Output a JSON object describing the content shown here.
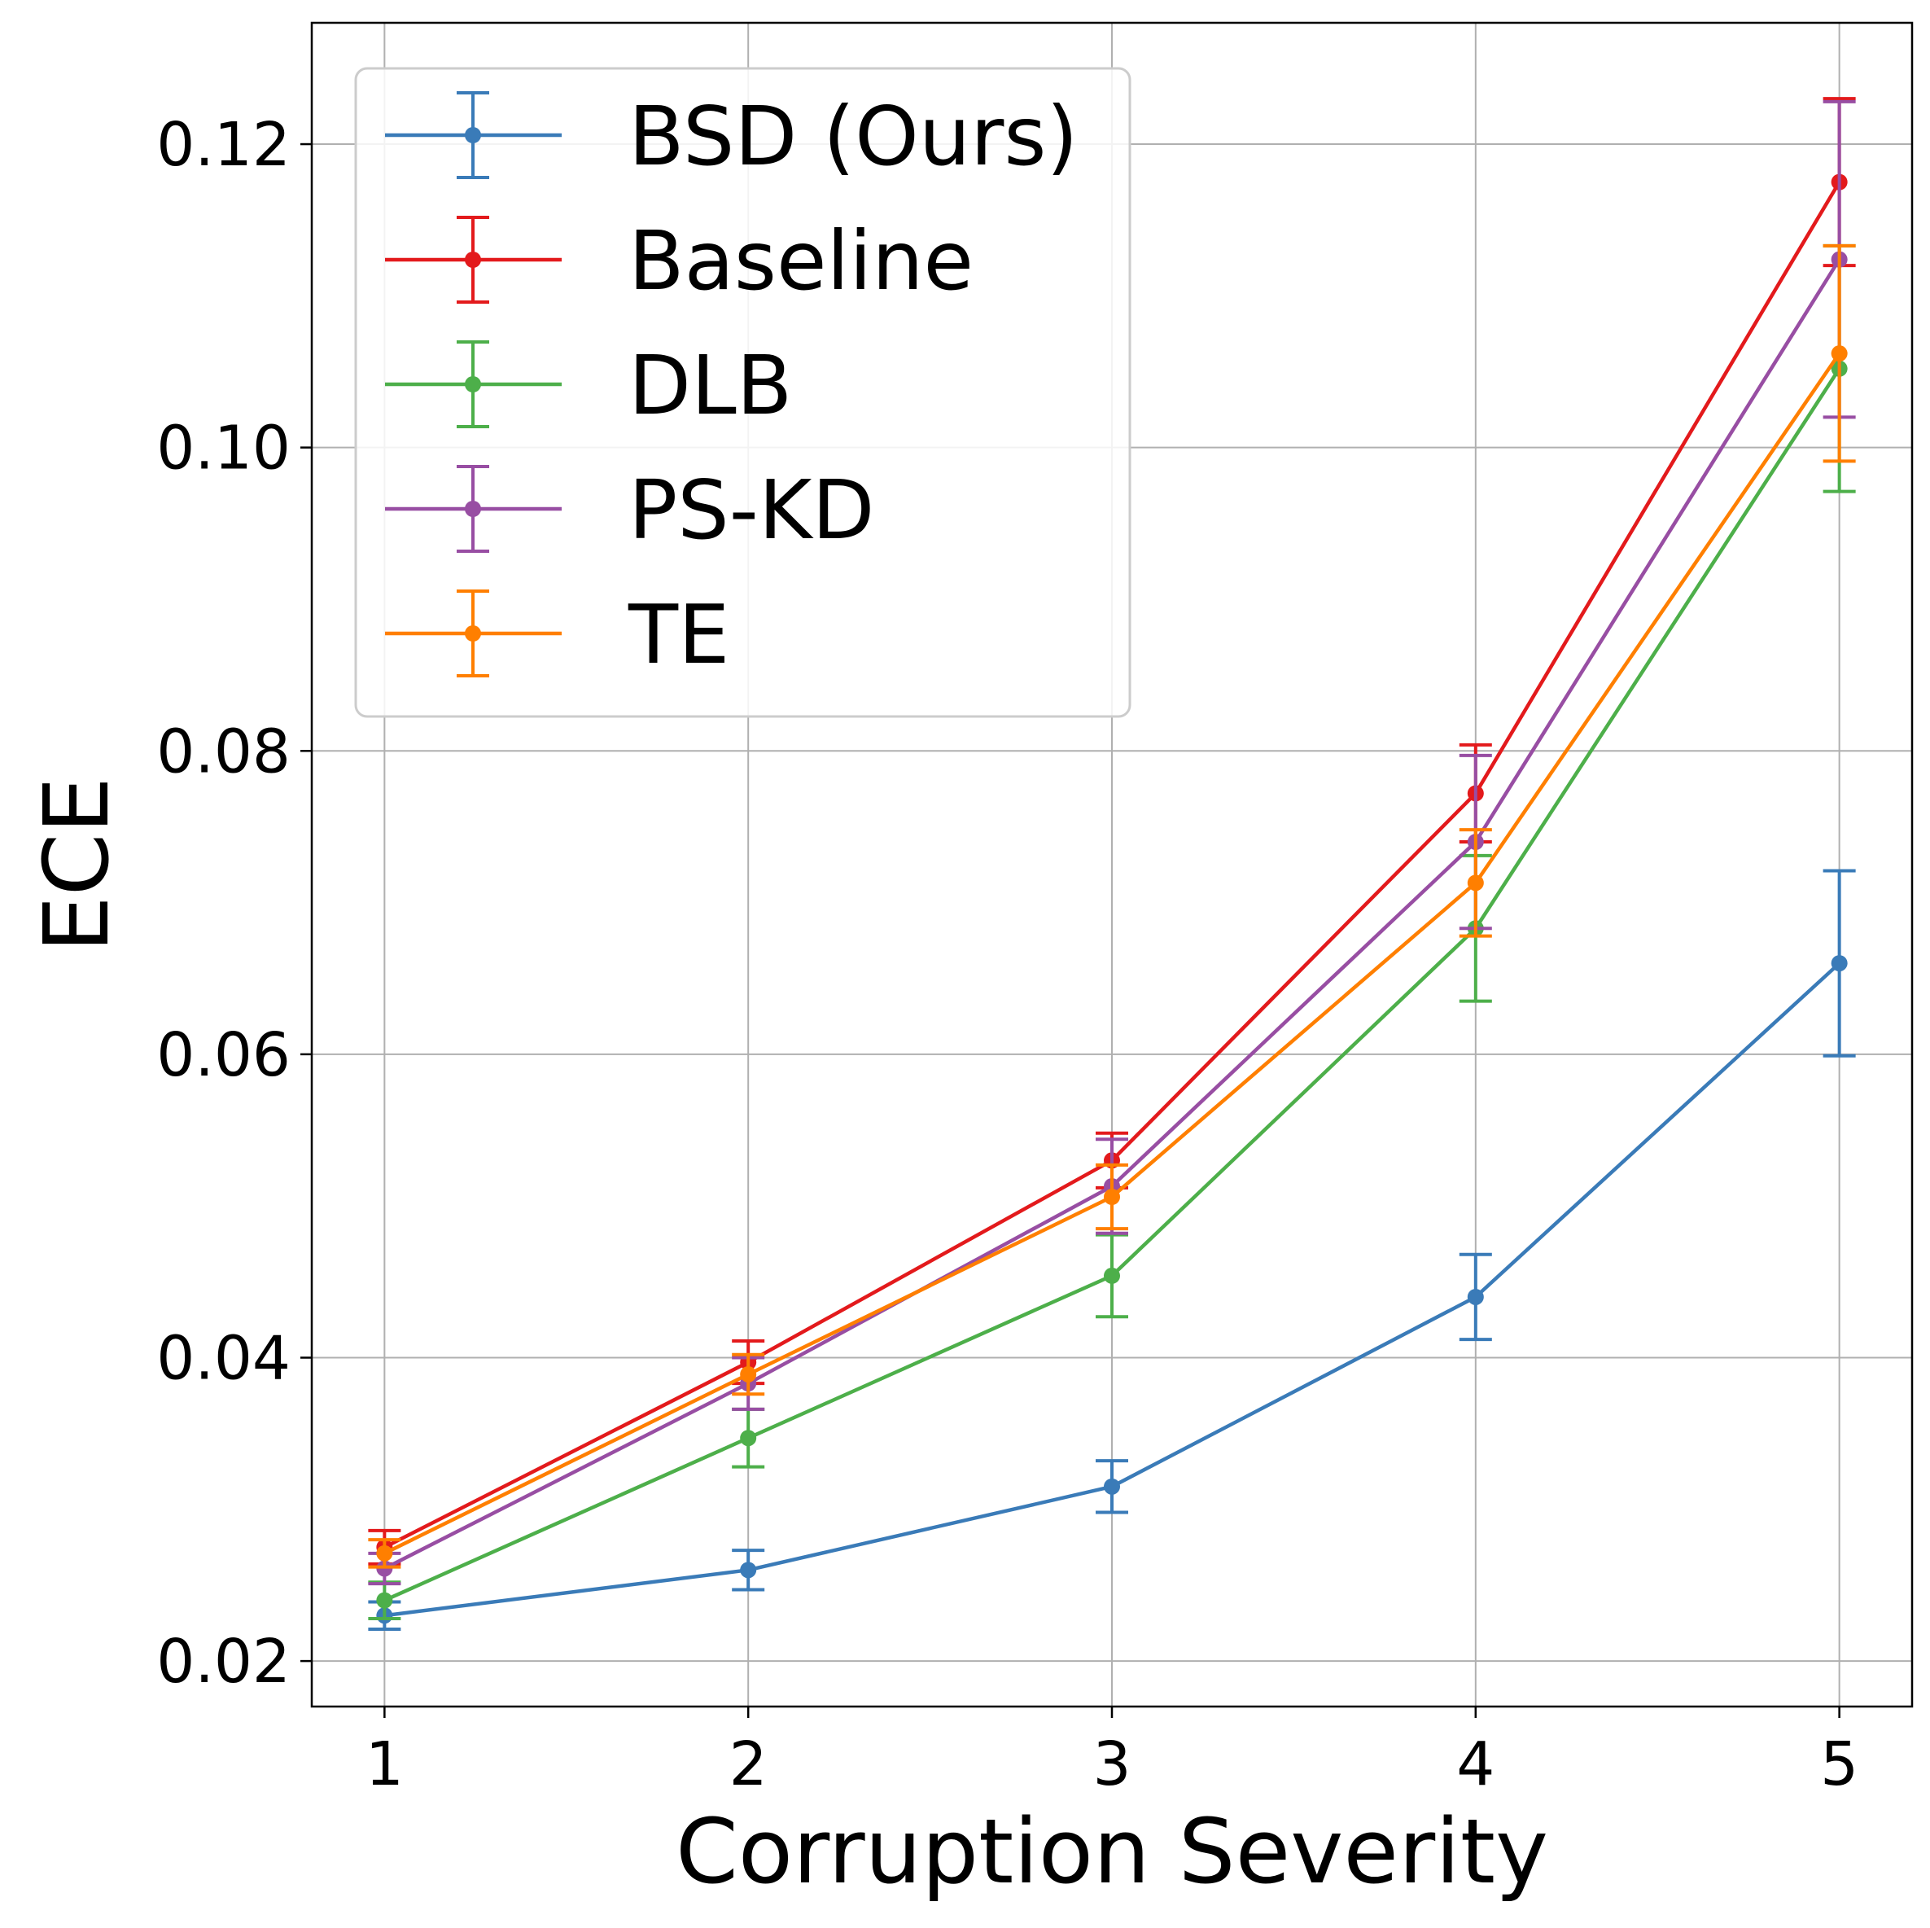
{
  "chart_data": {
    "type": "line",
    "title": "",
    "xlabel": "Corruption Severity",
    "ylabel": "ECE",
    "x": [
      1,
      2,
      3,
      4,
      5
    ],
    "xticks": [
      "1",
      "2",
      "3",
      "4",
      "5"
    ],
    "xlim": [
      0.8,
      5.2
    ],
    "ylim": [
      0.017,
      0.128
    ],
    "yticks": [
      0.02,
      0.04,
      0.06,
      0.08,
      0.1,
      0.12
    ],
    "ytick_labels": [
      "0.02",
      "0.04",
      "0.06",
      "0.08",
      "0.10",
      "0.12"
    ],
    "grid": true,
    "legend_position": "upper-left",
    "error_bars": true,
    "series": [
      {
        "name": "BSD (Ours)",
        "color": "#3a7bb8",
        "values": [
          0.023,
          0.026,
          0.0315,
          0.044,
          0.066
        ],
        "errors": [
          0.0009,
          0.0013,
          0.0017,
          0.0028,
          0.0061
        ]
      },
      {
        "name": "Baseline",
        "color": "#e31a1c",
        "values": [
          0.0275,
          0.0397,
          0.053,
          0.0772,
          0.1175
        ],
        "errors": [
          0.0011,
          0.0014,
          0.0018,
          0.0032,
          0.0055
        ]
      },
      {
        "name": "DLB",
        "color": "#4daf4a",
        "values": [
          0.024,
          0.0347,
          0.0454,
          0.0683,
          0.1052
        ],
        "errors": [
          0.0012,
          0.0019,
          0.0027,
          0.0048,
          0.0081
        ]
      },
      {
        "name": "PS-KD",
        "color": "#984ea3",
        "values": [
          0.0261,
          0.0383,
          0.0513,
          0.074,
          0.1124
        ],
        "errors": [
          0.001,
          0.0017,
          0.0031,
          0.0057,
          0.0104
        ]
      },
      {
        "name": "TE",
        "color": "#ff7f00",
        "values": [
          0.0271,
          0.0389,
          0.0506,
          0.0713,
          0.1062
        ],
        "errors": [
          0.0009,
          0.0013,
          0.0021,
          0.0035,
          0.0071
        ]
      }
    ]
  }
}
